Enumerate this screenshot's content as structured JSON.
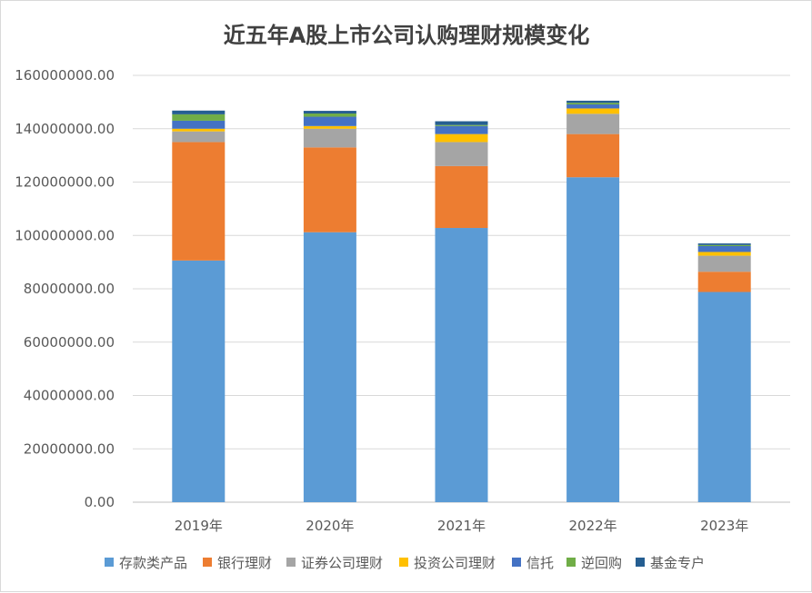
{
  "chart_data": {
    "type": "bar",
    "stacked": true,
    "title": "近五年A股上市公司认购理财规模变化",
    "xlabel": "",
    "ylabel": "",
    "categories": [
      "2019年",
      "2020年",
      "2021年",
      "2022年",
      "2023年"
    ],
    "ylim": [
      0,
      160000000
    ],
    "yticks": [
      0,
      20000000,
      40000000,
      60000000,
      80000000,
      100000000,
      120000000,
      140000000,
      160000000
    ],
    "ytick_labels": [
      "0.00",
      "20000000.00",
      "40000000.00",
      "60000000.00",
      "80000000.00",
      "100000000.00",
      "120000000.00",
      "140000000.00",
      "160000000.00"
    ],
    "grid": true,
    "legend_position": "bottom",
    "series": [
      {
        "name": "存款类产品",
        "color": "#5b9bd5",
        "values": [
          90600000,
          101200000,
          102800000,
          121800000,
          78800000
        ]
      },
      {
        "name": "银行理财",
        "color": "#ed7d31",
        "values": [
          44400000,
          31800000,
          23200000,
          16200000,
          7600000
        ]
      },
      {
        "name": "证券公司理财",
        "color": "#a5a5a5",
        "values": [
          4000000,
          7000000,
          9000000,
          7600000,
          6000000
        ]
      },
      {
        "name": "投资公司理财",
        "color": "#ffc000",
        "values": [
          1000000,
          1000000,
          3000000,
          2000000,
          1400000
        ]
      },
      {
        "name": "信托",
        "color": "#4472c4",
        "values": [
          3000000,
          3500000,
          3000000,
          1500000,
          2200000
        ]
      },
      {
        "name": "逆回购",
        "color": "#70ad47",
        "values": [
          2400000,
          1200000,
          400000,
          600000,
          400000
        ]
      },
      {
        "name": "基金专户",
        "color": "#255e91",
        "values": [
          1400000,
          1000000,
          1400000,
          800000,
          600000
        ]
      }
    ]
  }
}
